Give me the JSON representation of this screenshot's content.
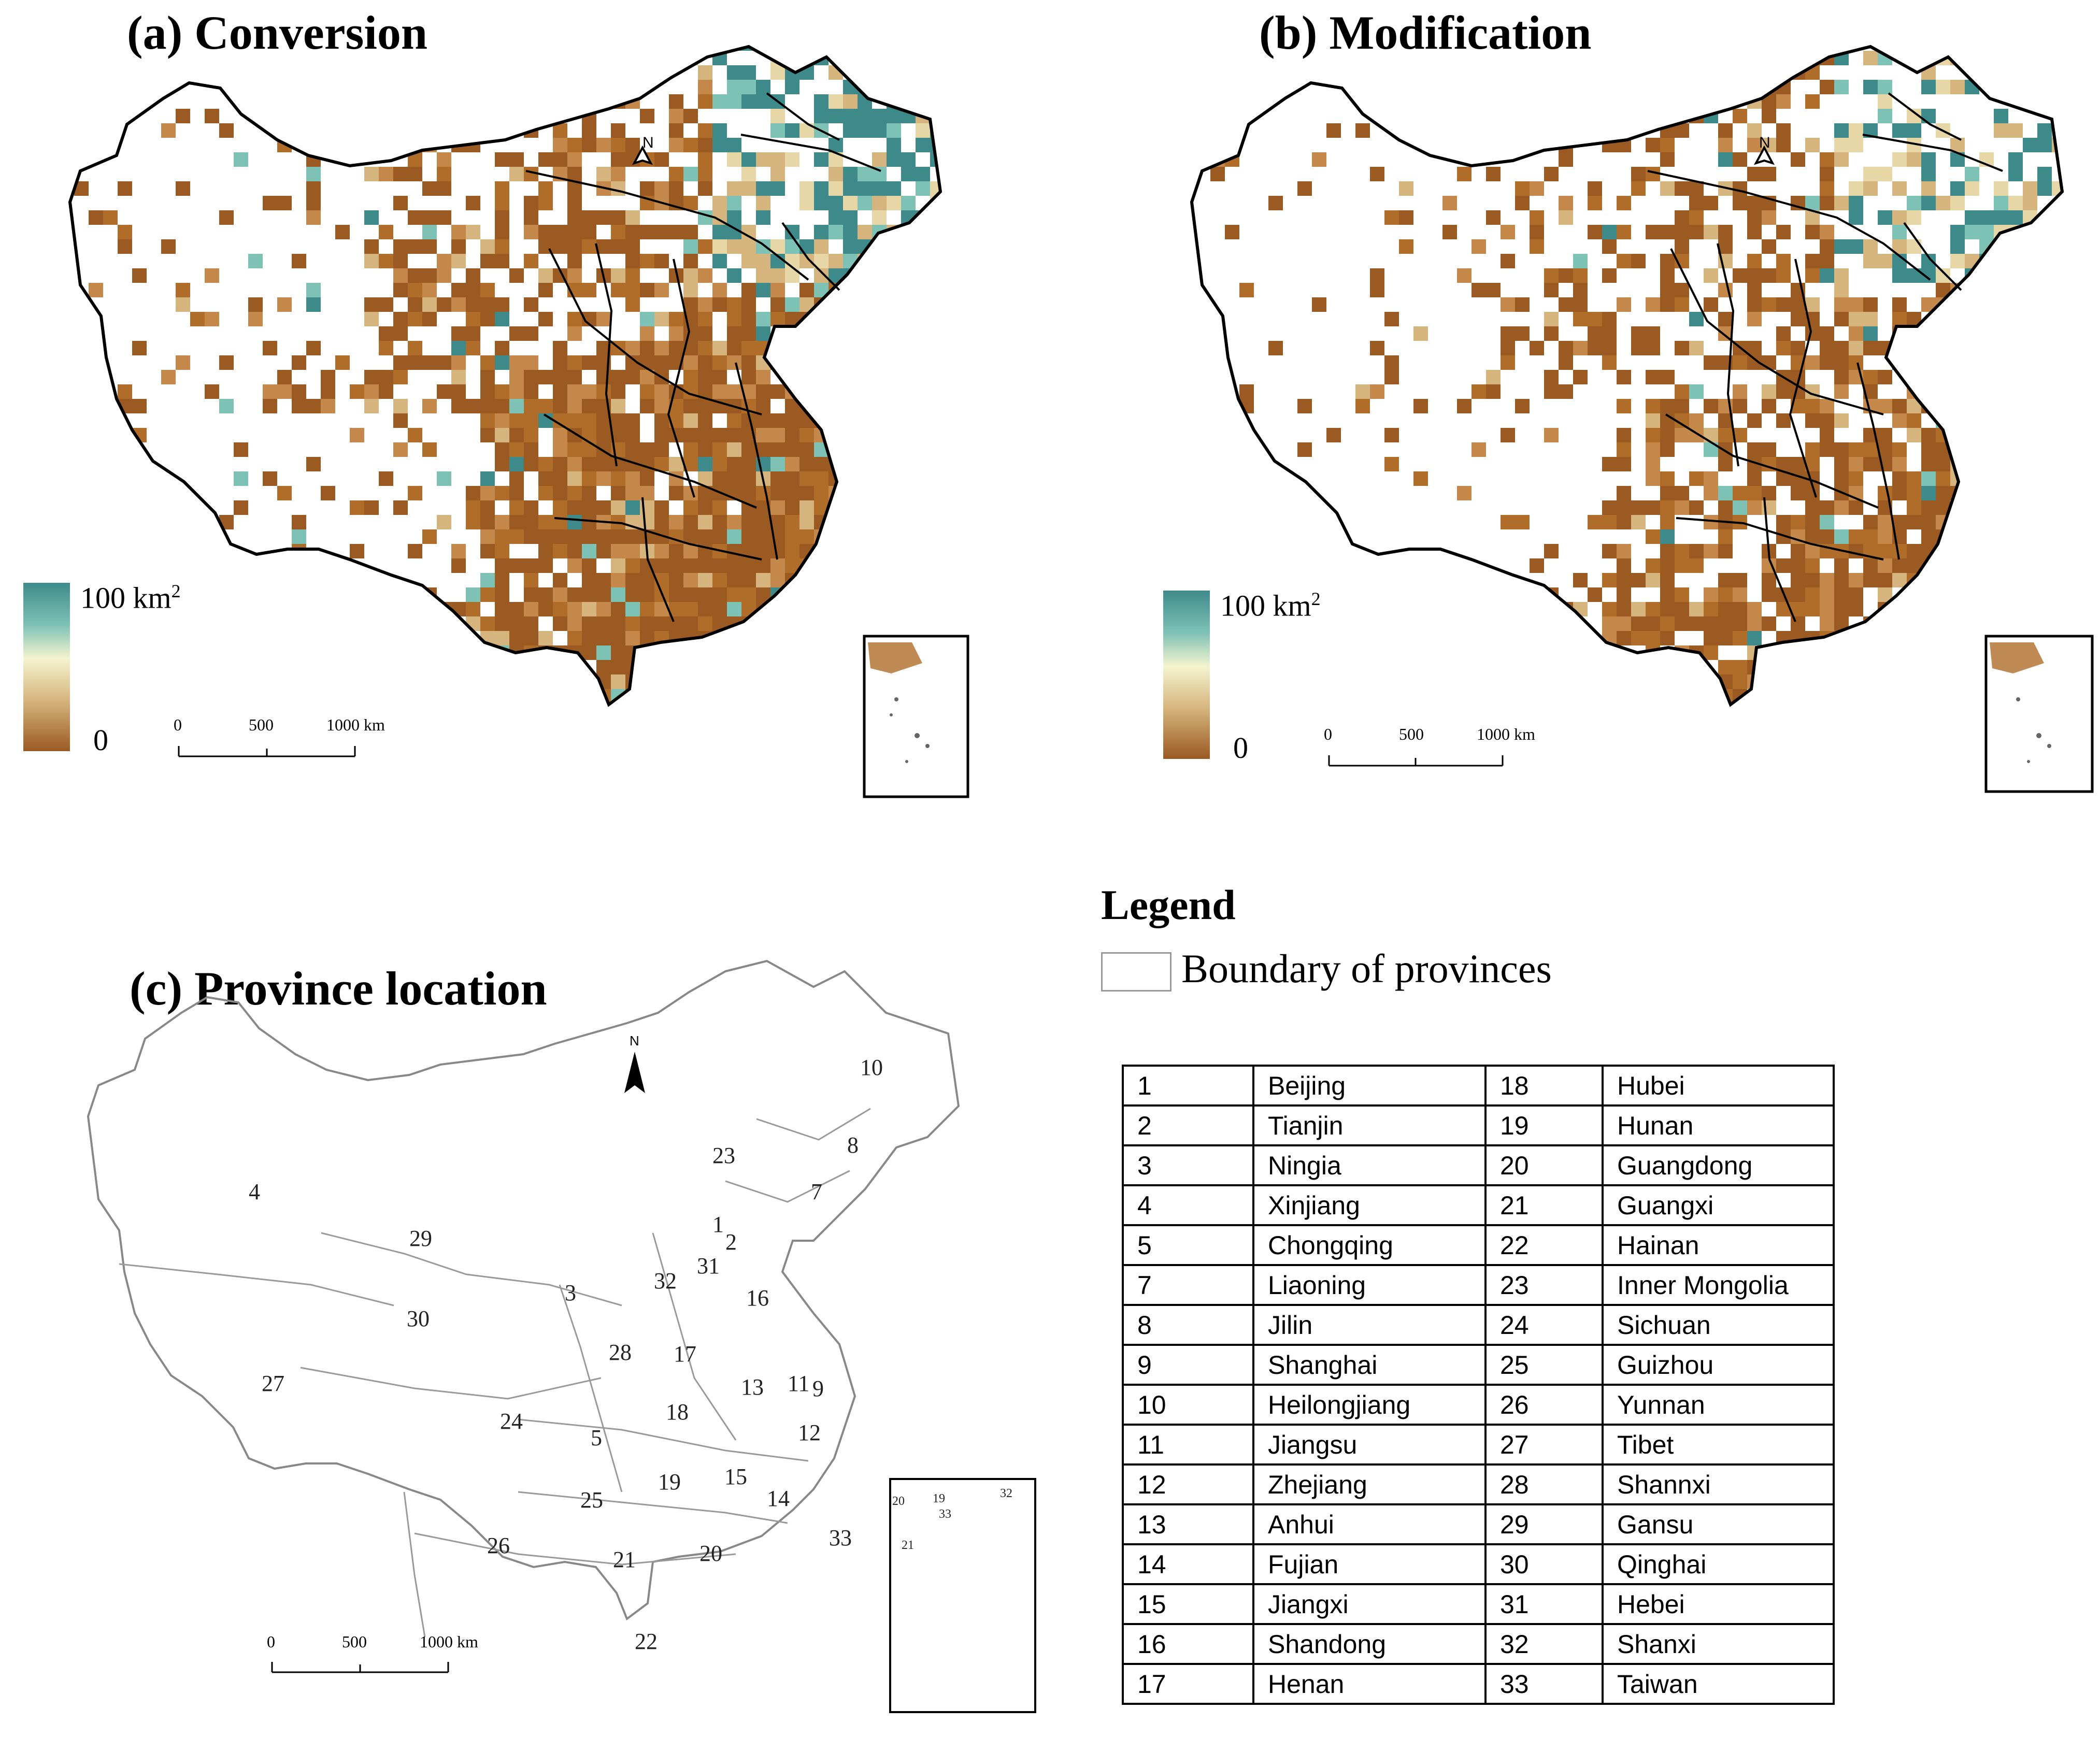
{
  "panels": {
    "a": {
      "title": "(a) Conversion"
    },
    "b": {
      "title": "(b) Modification"
    },
    "c": {
      "title": "(c) Province location"
    }
  },
  "north_arrow": "N",
  "colorbar": {
    "max_label": "100 km",
    "max_sup": "2",
    "min_label": "0",
    "colors": [
      "#3e8a8a",
      "#7ec1b5",
      "#f4f4cf",
      "#d6b47d",
      "#9a5a22"
    ]
  },
  "scalebar": {
    "ticks": [
      "0",
      "500",
      "1000 km"
    ]
  },
  "legend": {
    "heading": "Legend",
    "boundary_label": "Boundary of provinces"
  },
  "provinces": [
    {
      "id": "1",
      "name": "Beijing"
    },
    {
      "id": "2",
      "name": "Tianjin"
    },
    {
      "id": "3",
      "name": "Ningia"
    },
    {
      "id": "4",
      "name": "Xinjiang"
    },
    {
      "id": "5",
      "name": "Chongqing"
    },
    {
      "id": "7",
      "name": "Liaoning"
    },
    {
      "id": "8",
      "name": "Jilin"
    },
    {
      "id": "9",
      "name": "Shanghai"
    },
    {
      "id": "10",
      "name": "Heilongjiang"
    },
    {
      "id": "11",
      "name": "Jiangsu"
    },
    {
      "id": "12",
      "name": "Zhejiang"
    },
    {
      "id": "13",
      "name": "Anhui"
    },
    {
      "id": "14",
      "name": "Fujian"
    },
    {
      "id": "15",
      "name": "Jiangxi"
    },
    {
      "id": "16",
      "name": "Shandong"
    },
    {
      "id": "17",
      "name": "Henan"
    },
    {
      "id": "18",
      "name": "Hubei"
    },
    {
      "id": "19",
      "name": "Hunan"
    },
    {
      "id": "20",
      "name": "Guangdong"
    },
    {
      "id": "21",
      "name": "Guangxi"
    },
    {
      "id": "22",
      "name": "Hainan"
    },
    {
      "id": "23",
      "name": "Inner Mongolia"
    },
    {
      "id": "24",
      "name": "Sichuan"
    },
    {
      "id": "25",
      "name": "Guizhou"
    },
    {
      "id": "26",
      "name": "Yunnan"
    },
    {
      "id": "27",
      "name": "Tibet"
    },
    {
      "id": "28",
      "name": "Shannxi"
    },
    {
      "id": "29",
      "name": "Gansu"
    },
    {
      "id": "30",
      "name": "Qinghai"
    },
    {
      "id": "31",
      "name": "Hebei"
    },
    {
      "id": "32",
      "name": "Shanxi"
    },
    {
      "id": "33",
      "name": "Taiwan"
    }
  ],
  "map_labels": [
    "10",
    "8",
    "4",
    "23",
    "7",
    "1",
    "2",
    "29",
    "31",
    "32",
    "16",
    "3",
    "30",
    "28",
    "17",
    "13",
    "11",
    "9",
    "27",
    "24",
    "18",
    "12",
    "5",
    "19",
    "15",
    "25",
    "14",
    "33",
    "26",
    "21",
    "20",
    "22"
  ],
  "inset_labels": [
    "20",
    "19",
    "33",
    "32",
    "21"
  ]
}
